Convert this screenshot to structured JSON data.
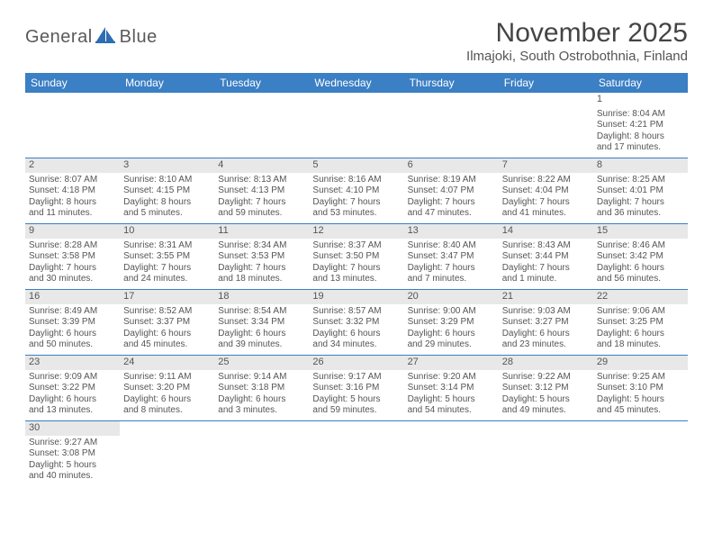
{
  "logo": {
    "text1": "General",
    "text2": "Blue"
  },
  "title": "November 2025",
  "location": "Ilmajoki, South Ostrobothnia, Finland",
  "colors": {
    "header_bg": "#3b7fc4",
    "header_text": "#ffffff",
    "daynum_bg": "#e8e8e8",
    "row_border": "#3b7fc4",
    "body_text": "#555555"
  },
  "day_names": [
    "Sunday",
    "Monday",
    "Tuesday",
    "Wednesday",
    "Thursday",
    "Friday",
    "Saturday"
  ],
  "weeks": [
    [
      {
        "n": "",
        "lines": []
      },
      {
        "n": "",
        "lines": []
      },
      {
        "n": "",
        "lines": []
      },
      {
        "n": "",
        "lines": []
      },
      {
        "n": "",
        "lines": []
      },
      {
        "n": "",
        "lines": []
      },
      {
        "n": "1",
        "lines": [
          "Sunrise: 8:04 AM",
          "Sunset: 4:21 PM",
          "Daylight: 8 hours",
          "and 17 minutes."
        ]
      }
    ],
    [
      {
        "n": "2",
        "lines": [
          "Sunrise: 8:07 AM",
          "Sunset: 4:18 PM",
          "Daylight: 8 hours",
          "and 11 minutes."
        ]
      },
      {
        "n": "3",
        "lines": [
          "Sunrise: 8:10 AM",
          "Sunset: 4:15 PM",
          "Daylight: 8 hours",
          "and 5 minutes."
        ]
      },
      {
        "n": "4",
        "lines": [
          "Sunrise: 8:13 AM",
          "Sunset: 4:13 PM",
          "Daylight: 7 hours",
          "and 59 minutes."
        ]
      },
      {
        "n": "5",
        "lines": [
          "Sunrise: 8:16 AM",
          "Sunset: 4:10 PM",
          "Daylight: 7 hours",
          "and 53 minutes."
        ]
      },
      {
        "n": "6",
        "lines": [
          "Sunrise: 8:19 AM",
          "Sunset: 4:07 PM",
          "Daylight: 7 hours",
          "and 47 minutes."
        ]
      },
      {
        "n": "7",
        "lines": [
          "Sunrise: 8:22 AM",
          "Sunset: 4:04 PM",
          "Daylight: 7 hours",
          "and 41 minutes."
        ]
      },
      {
        "n": "8",
        "lines": [
          "Sunrise: 8:25 AM",
          "Sunset: 4:01 PM",
          "Daylight: 7 hours",
          "and 36 minutes."
        ]
      }
    ],
    [
      {
        "n": "9",
        "lines": [
          "Sunrise: 8:28 AM",
          "Sunset: 3:58 PM",
          "Daylight: 7 hours",
          "and 30 minutes."
        ]
      },
      {
        "n": "10",
        "lines": [
          "Sunrise: 8:31 AM",
          "Sunset: 3:55 PM",
          "Daylight: 7 hours",
          "and 24 minutes."
        ]
      },
      {
        "n": "11",
        "lines": [
          "Sunrise: 8:34 AM",
          "Sunset: 3:53 PM",
          "Daylight: 7 hours",
          "and 18 minutes."
        ]
      },
      {
        "n": "12",
        "lines": [
          "Sunrise: 8:37 AM",
          "Sunset: 3:50 PM",
          "Daylight: 7 hours",
          "and 13 minutes."
        ]
      },
      {
        "n": "13",
        "lines": [
          "Sunrise: 8:40 AM",
          "Sunset: 3:47 PM",
          "Daylight: 7 hours",
          "and 7 minutes."
        ]
      },
      {
        "n": "14",
        "lines": [
          "Sunrise: 8:43 AM",
          "Sunset: 3:44 PM",
          "Daylight: 7 hours",
          "and 1 minute."
        ]
      },
      {
        "n": "15",
        "lines": [
          "Sunrise: 8:46 AM",
          "Sunset: 3:42 PM",
          "Daylight: 6 hours",
          "and 56 minutes."
        ]
      }
    ],
    [
      {
        "n": "16",
        "lines": [
          "Sunrise: 8:49 AM",
          "Sunset: 3:39 PM",
          "Daylight: 6 hours",
          "and 50 minutes."
        ]
      },
      {
        "n": "17",
        "lines": [
          "Sunrise: 8:52 AM",
          "Sunset: 3:37 PM",
          "Daylight: 6 hours",
          "and 45 minutes."
        ]
      },
      {
        "n": "18",
        "lines": [
          "Sunrise: 8:54 AM",
          "Sunset: 3:34 PM",
          "Daylight: 6 hours",
          "and 39 minutes."
        ]
      },
      {
        "n": "19",
        "lines": [
          "Sunrise: 8:57 AM",
          "Sunset: 3:32 PM",
          "Daylight: 6 hours",
          "and 34 minutes."
        ]
      },
      {
        "n": "20",
        "lines": [
          "Sunrise: 9:00 AM",
          "Sunset: 3:29 PM",
          "Daylight: 6 hours",
          "and 29 minutes."
        ]
      },
      {
        "n": "21",
        "lines": [
          "Sunrise: 9:03 AM",
          "Sunset: 3:27 PM",
          "Daylight: 6 hours",
          "and 23 minutes."
        ]
      },
      {
        "n": "22",
        "lines": [
          "Sunrise: 9:06 AM",
          "Sunset: 3:25 PM",
          "Daylight: 6 hours",
          "and 18 minutes."
        ]
      }
    ],
    [
      {
        "n": "23",
        "lines": [
          "Sunrise: 9:09 AM",
          "Sunset: 3:22 PM",
          "Daylight: 6 hours",
          "and 13 minutes."
        ]
      },
      {
        "n": "24",
        "lines": [
          "Sunrise: 9:11 AM",
          "Sunset: 3:20 PM",
          "Daylight: 6 hours",
          "and 8 minutes."
        ]
      },
      {
        "n": "25",
        "lines": [
          "Sunrise: 9:14 AM",
          "Sunset: 3:18 PM",
          "Daylight: 6 hours",
          "and 3 minutes."
        ]
      },
      {
        "n": "26",
        "lines": [
          "Sunrise: 9:17 AM",
          "Sunset: 3:16 PM",
          "Daylight: 5 hours",
          "and 59 minutes."
        ]
      },
      {
        "n": "27",
        "lines": [
          "Sunrise: 9:20 AM",
          "Sunset: 3:14 PM",
          "Daylight: 5 hours",
          "and 54 minutes."
        ]
      },
      {
        "n": "28",
        "lines": [
          "Sunrise: 9:22 AM",
          "Sunset: 3:12 PM",
          "Daylight: 5 hours",
          "and 49 minutes."
        ]
      },
      {
        "n": "29",
        "lines": [
          "Sunrise: 9:25 AM",
          "Sunset: 3:10 PM",
          "Daylight: 5 hours",
          "and 45 minutes."
        ]
      }
    ],
    [
      {
        "n": "30",
        "lines": [
          "Sunrise: 9:27 AM",
          "Sunset: 3:08 PM",
          "Daylight: 5 hours",
          "and 40 minutes."
        ]
      },
      {
        "n": "",
        "lines": []
      },
      {
        "n": "",
        "lines": []
      },
      {
        "n": "",
        "lines": []
      },
      {
        "n": "",
        "lines": []
      },
      {
        "n": "",
        "lines": []
      },
      {
        "n": "",
        "lines": []
      }
    ]
  ]
}
